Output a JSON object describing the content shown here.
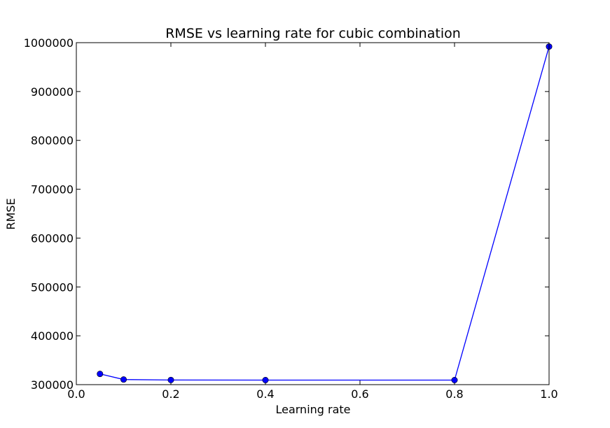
{
  "chart_data": {
    "type": "line",
    "title": "RMSE vs learning rate for cubic combination",
    "xlabel": "Learning rate",
    "ylabel": "RMSE",
    "xlim": [
      0.0,
      1.0
    ],
    "ylim": [
      300000,
      1000000
    ],
    "x_ticks": [
      "0.0",
      "0.2",
      "0.4",
      "0.6",
      "0.8",
      "1.0"
    ],
    "y_ticks": [
      "300000",
      "400000",
      "500000",
      "600000",
      "700000",
      "800000",
      "900000",
      "1000000"
    ],
    "grid": false,
    "series": [
      {
        "color": "#0000ff",
        "marker": "circle",
        "x": [
          0.05,
          0.1,
          0.2,
          0.4,
          0.8,
          1.0
        ],
        "y": [
          322000,
          310500,
          309500,
          309300,
          309300,
          992000
        ]
      }
    ]
  }
}
